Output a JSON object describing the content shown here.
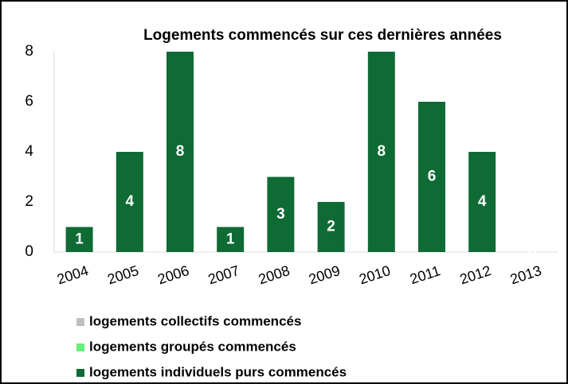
{
  "chart_data": {
    "type": "stacked_bar",
    "title": "Logements commencés sur ces dernières années",
    "categories": [
      "2004",
      "2005",
      "2006",
      "2007",
      "2008",
      "2009",
      "2010",
      "2011",
      "2012",
      "2013"
    ],
    "series": [
      {
        "name": "logements collectifs commencés",
        "color": "#bfbfbf",
        "values": [
          0,
          0,
          0,
          0,
          0,
          0,
          0,
          0,
          0,
          0
        ],
        "data_labels": false
      },
      {
        "name": "logements groupés commencés",
        "color": "#66f07a",
        "values": [
          0,
          0,
          0,
          0,
          0,
          0,
          0,
          0,
          0,
          0
        ],
        "data_labels": false
      },
      {
        "name": "logements individuels purs commencés",
        "color": "#0e6b34",
        "values": [
          1,
          4,
          8,
          1,
          3,
          2,
          8,
          6,
          4,
          0
        ],
        "data_labels": true
      }
    ],
    "ylim": [
      0,
      8
    ],
    "yticks": [
      0,
      2,
      4,
      6,
      8
    ],
    "grid": false,
    "legend": "bottom"
  }
}
